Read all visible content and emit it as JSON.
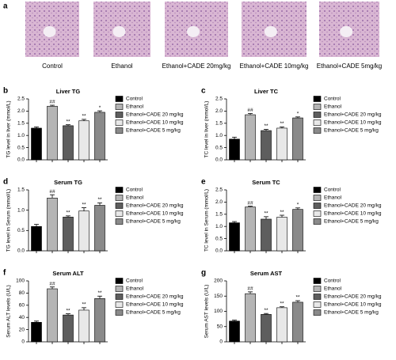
{
  "panel_a": {
    "label": "a",
    "images": [
      {
        "caption": "Control"
      },
      {
        "caption": "Ethanol"
      },
      {
        "caption": "Ethanol+CADE 20mg/kg"
      },
      {
        "caption": "Ethanol+CADE 10mg/kg"
      },
      {
        "caption": "Ethanol+CADE 5mg/kg"
      }
    ]
  },
  "chart_data": [
    {
      "type": "bar",
      "panel_label": "b",
      "title": "Liver  TG",
      "y_label": "TG level in liver (mmol/L)",
      "ylim": [
        0,
        2.5
      ],
      "yticks": [
        {
          "value": 0,
          "label": "0.0"
        },
        0.5,
        {
          "value": 1,
          "label": "1.0"
        },
        1.5,
        {
          "value": 2,
          "label": "2.0"
        },
        2.5
      ],
      "series": [
        {
          "name": "Control",
          "color": "#000000",
          "values": [
            1.3
          ],
          "errors": [
            0.05
          ]
        },
        {
          "name": "Ethanol",
          "color": "#b5b5b5",
          "values": [
            2.2
          ],
          "errors": [
            0.04
          ],
          "annotation": "##"
        },
        {
          "name": "Ethanol+CADE 20 mg/kg",
          "color": "#5e5e5e",
          "values": [
            1.4
          ],
          "errors": [
            0.04
          ],
          "annotation": "**"
        },
        {
          "name": "Ethanol+CADE 10 mg/kg",
          "color": "#e8e8e8",
          "values": [
            1.6
          ],
          "errors": [
            0.06
          ],
          "annotation": "**"
        },
        {
          "name": "Ethanol+CADE 5 mg/kg",
          "color": "#8a8a8a",
          "values": [
            1.95
          ],
          "errors": [
            0.06
          ],
          "annotation": "*"
        }
      ]
    },
    {
      "type": "bar",
      "panel_label": "c",
      "title": "Liver  TC",
      "y_label": "TC level in liver (mmol/L)",
      "ylim": [
        0,
        2.5
      ],
      "yticks": [
        {
          "value": 0,
          "label": "0.0"
        },
        0.5,
        {
          "value": 1,
          "label": "1.0"
        },
        1.5,
        {
          "value": 2,
          "label": "2.0"
        },
        2.5
      ],
      "series": [
        {
          "name": "Control",
          "color": "#000000",
          "values": [
            0.85
          ],
          "errors": [
            0.08
          ]
        },
        {
          "name": "Ethanol",
          "color": "#b5b5b5",
          "values": [
            1.85
          ],
          "errors": [
            0.05
          ],
          "annotation": "##"
        },
        {
          "name": "Ethanol+CADE 20 mg/kg",
          "color": "#5e5e5e",
          "values": [
            1.2
          ],
          "errors": [
            0.05
          ],
          "annotation": "**"
        },
        {
          "name": "Ethanol+CADE 10 mg/kg",
          "color": "#e8e8e8",
          "values": [
            1.3
          ],
          "errors": [
            0.05
          ],
          "annotation": "**"
        },
        {
          "name": "Ethanol+CADE 5 mg/kg",
          "color": "#8a8a8a",
          "values": [
            1.72
          ],
          "errors": [
            0.04
          ],
          "annotation": "*"
        }
      ]
    },
    {
      "type": "bar",
      "panel_label": "d",
      "title": "Serum  TG",
      "y_label": "TG level in Serum (mmol/L)",
      "ylim": [
        0,
        1.5
      ],
      "yticks": [
        {
          "value": 0,
          "label": "0.0"
        },
        0.5,
        {
          "value": 1,
          "label": "1.0"
        },
        1.5
      ],
      "series": [
        {
          "name": "Control",
          "color": "#000000",
          "values": [
            0.6
          ],
          "errors": [
            0.05
          ]
        },
        {
          "name": "Ethanol",
          "color": "#b5b5b5",
          "values": [
            1.3
          ],
          "errors": [
            0.08
          ],
          "annotation": "##"
        },
        {
          "name": "Ethanol+CADE 20 mg/kg",
          "color": "#5e5e5e",
          "values": [
            0.83
          ],
          "errors": [
            0.03
          ],
          "annotation": "**"
        },
        {
          "name": "Ethanol+CADE 10 mg/kg",
          "color": "#e8e8e8",
          "values": [
            0.98
          ],
          "errors": [
            0.08
          ],
          "annotation": "**"
        },
        {
          "name": "Ethanol+CADE 5 mg/kg",
          "color": "#8a8a8a",
          "values": [
            1.12
          ],
          "errors": [
            0.06
          ],
          "annotation": "**"
        }
      ]
    },
    {
      "type": "bar",
      "panel_label": "e",
      "title": "Serum TC",
      "y_label": "TC level in Serum (mmol/L)",
      "ylim": [
        0,
        2.5
      ],
      "yticks": [
        {
          "value": 0,
          "label": "0.0"
        },
        0.5,
        {
          "value": 1,
          "label": "1.0"
        },
        1.5,
        {
          "value": 2,
          "label": "2.0"
        },
        2.5
      ],
      "series": [
        {
          "name": "Control",
          "color": "#000000",
          "values": [
            1.15
          ],
          "errors": [
            0.05
          ]
        },
        {
          "name": "Ethanol",
          "color": "#b5b5b5",
          "values": [
            1.8
          ],
          "errors": [
            0.03
          ],
          "annotation": "##"
        },
        {
          "name": "Ethanol+CADE 20 mg/kg",
          "color": "#5e5e5e",
          "values": [
            1.3
          ],
          "errors": [
            0.1
          ],
          "annotation": "**"
        },
        {
          "name": "Ethanol+CADE 10 mg/kg",
          "color": "#e8e8e8",
          "values": [
            1.38
          ],
          "errors": [
            0.08
          ],
          "annotation": "**"
        },
        {
          "name": "Ethanol+CADE 5 mg/kg",
          "color": "#8a8a8a",
          "values": [
            1.7
          ],
          "errors": [
            0.06
          ],
          "annotation": "*"
        }
      ]
    },
    {
      "type": "bar",
      "panel_label": "f",
      "title": "Serum  ALT",
      "y_label": "Serum ALT levels (U/L)",
      "ylim": [
        0,
        100
      ],
      "yticks": [
        0,
        20,
        40,
        60,
        80,
        100
      ],
      "series": [
        {
          "name": "Control",
          "color": "#000000",
          "values": [
            32
          ],
          "errors": [
            2
          ]
        },
        {
          "name": "Ethanol",
          "color": "#b5b5b5",
          "values": [
            87
          ],
          "errors": [
            3
          ],
          "annotation": "##"
        },
        {
          "name": "Ethanol+CADE 20 mg/kg",
          "color": "#5e5e5e",
          "values": [
            44
          ],
          "errors": [
            2
          ],
          "annotation": "**"
        },
        {
          "name": "Ethanol+CADE 10 mg/kg",
          "color": "#e8e8e8",
          "values": [
            52
          ],
          "errors": [
            4
          ],
          "annotation": "**"
        },
        {
          "name": "Ethanol+CADE 5 mg/kg",
          "color": "#8a8a8a",
          "values": [
            71
          ],
          "errors": [
            4
          ],
          "annotation": "**"
        }
      ]
    },
    {
      "type": "bar",
      "panel_label": "g",
      "title": "Serum  AST",
      "y_label": "Serum AST levels (U/L)",
      "ylim": [
        0,
        200
      ],
      "yticks": [
        0,
        50,
        100,
        150,
        200
      ],
      "series": [
        {
          "name": "Control",
          "color": "#000000",
          "values": [
            68
          ],
          "errors": [
            3
          ]
        },
        {
          "name": "Ethanol",
          "color": "#b5b5b5",
          "values": [
            158
          ],
          "errors": [
            6
          ],
          "annotation": "##"
        },
        {
          "name": "Ethanol+CADE 20 mg/kg",
          "color": "#5e5e5e",
          "values": [
            90
          ],
          "errors": [
            3
          ],
          "annotation": "**"
        },
        {
          "name": "Ethanol+CADE 10 mg/kg",
          "color": "#e8e8e8",
          "values": [
            112
          ],
          "errors": [
            3
          ],
          "annotation": "**"
        },
        {
          "name": "Ethanol+CADE 5 mg/kg",
          "color": "#8a8a8a",
          "values": [
            130
          ],
          "errors": [
            5
          ],
          "annotation": "**"
        }
      ]
    }
  ]
}
